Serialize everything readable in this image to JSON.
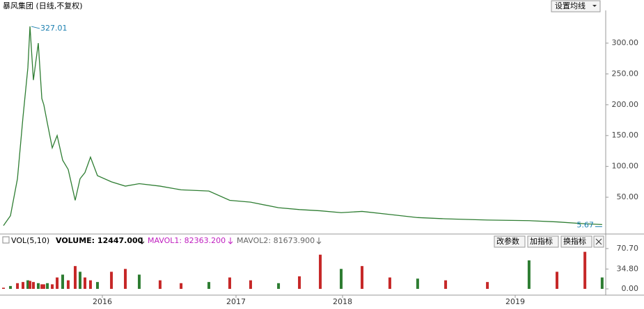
{
  "header": {
    "title": "暴风集团 (日线,不复权)",
    "button": "设置均线"
  },
  "chart_data": [
    {
      "type": "line",
      "color": "#2e7d32",
      "x": [
        2015.25,
        2015.303,
        2015.356,
        2015.398,
        2015.435,
        2015.451,
        2015.477,
        2015.514,
        2015.541,
        2015.556,
        2015.583,
        2015.62,
        2015.657,
        2015.699,
        2015.741,
        2015.794,
        2015.831,
        2015.868,
        2015.91,
        2015.963,
        2016.068,
        2016.172,
        2016.276,
        2016.432,
        2016.589,
        2016.797,
        2016.953,
        2017.137,
        2017.399,
        2017.595,
        2017.791,
        2017.987,
        2018.113,
        2018.274,
        2018.435,
        2018.597,
        2018.839,
        2019.07,
        2019.211,
        2019.352,
        2019.439
      ],
      "values": [
        4,
        20,
        80,
        180,
        260,
        327.01,
        240,
        300,
        210,
        200,
        170,
        130,
        150,
        110,
        95,
        45,
        80,
        90,
        115,
        85,
        75,
        68,
        72,
        68,
        62,
        60,
        45,
        42,
        33,
        30,
        28,
        25,
        27,
        22,
        17,
        15,
        13,
        12,
        10,
        7,
        5.67
      ],
      "xlim": [
        2015.25,
        2019.45
      ],
      "ylim": [
        -7.4,
        353
      ],
      "yticks": [
        {
          "value": 50,
          "label": "50.00"
        },
        {
          "value": 100,
          "label": "100.00"
        },
        {
          "value": 150,
          "label": "150.00"
        },
        {
          "value": 200,
          "label": "200.00"
        },
        {
          "value": 250,
          "label": "250.00"
        },
        {
          "value": 300,
          "label": "300.00"
        }
      ],
      "annotations": [
        {
          "value": 327.01,
          "label": "327.01"
        },
        {
          "value": 5.67,
          "label": "5.67"
        }
      ]
    },
    {
      "type": "bar",
      "color": "#c62828",
      "indicator": "VOL(5,10)",
      "readouts": [
        "VOLUME: 12447.000",
        "MAVOL1: 82363.200",
        "MAVOL2: 81673.900"
      ],
      "buttons": [
        "改参数",
        "加指标",
        "换指标"
      ],
      "x": [
        2015.25,
        2015.303,
        2015.356,
        2015.398,
        2015.435,
        2015.451,
        2015.477,
        2015.514,
        2015.541,
        2015.556,
        2015.583,
        2015.62,
        2015.657,
        2015.699,
        2015.741,
        2015.794,
        2015.831,
        2015.868,
        2015.91,
        2015.963,
        2016.068,
        2016.172,
        2016.276,
        2016.432,
        2016.589,
        2016.797,
        2016.953,
        2017.137,
        2017.399,
        2017.595,
        2017.791,
        2017.987,
        2018.113,
        2018.274,
        2018.435,
        2018.597,
        2018.839,
        2019.07,
        2019.211,
        2019.352,
        2019.439
      ],
      "values": [
        2,
        5,
        10,
        12,
        15,
        14,
        12,
        10,
        8,
        8,
        10,
        8,
        20,
        25,
        15,
        40,
        30,
        20,
        15,
        12,
        30,
        35,
        25,
        15,
        10,
        12,
        20,
        15,
        10,
        22,
        60,
        35,
        40,
        20,
        18,
        15,
        12,
        50,
        30,
        65,
        20
      ],
      "xlim": [
        2015.25,
        2019.45
      ],
      "ylim": [
        0,
        86.5
      ],
      "yticks": [
        {
          "value": 0,
          "label": "0.00"
        },
        {
          "value": 34.8,
          "label": "34.80"
        },
        {
          "value": 70.7,
          "label": "70.70"
        }
      ],
      "xticks": [
        2016,
        2017,
        2018,
        2019
      ]
    }
  ]
}
